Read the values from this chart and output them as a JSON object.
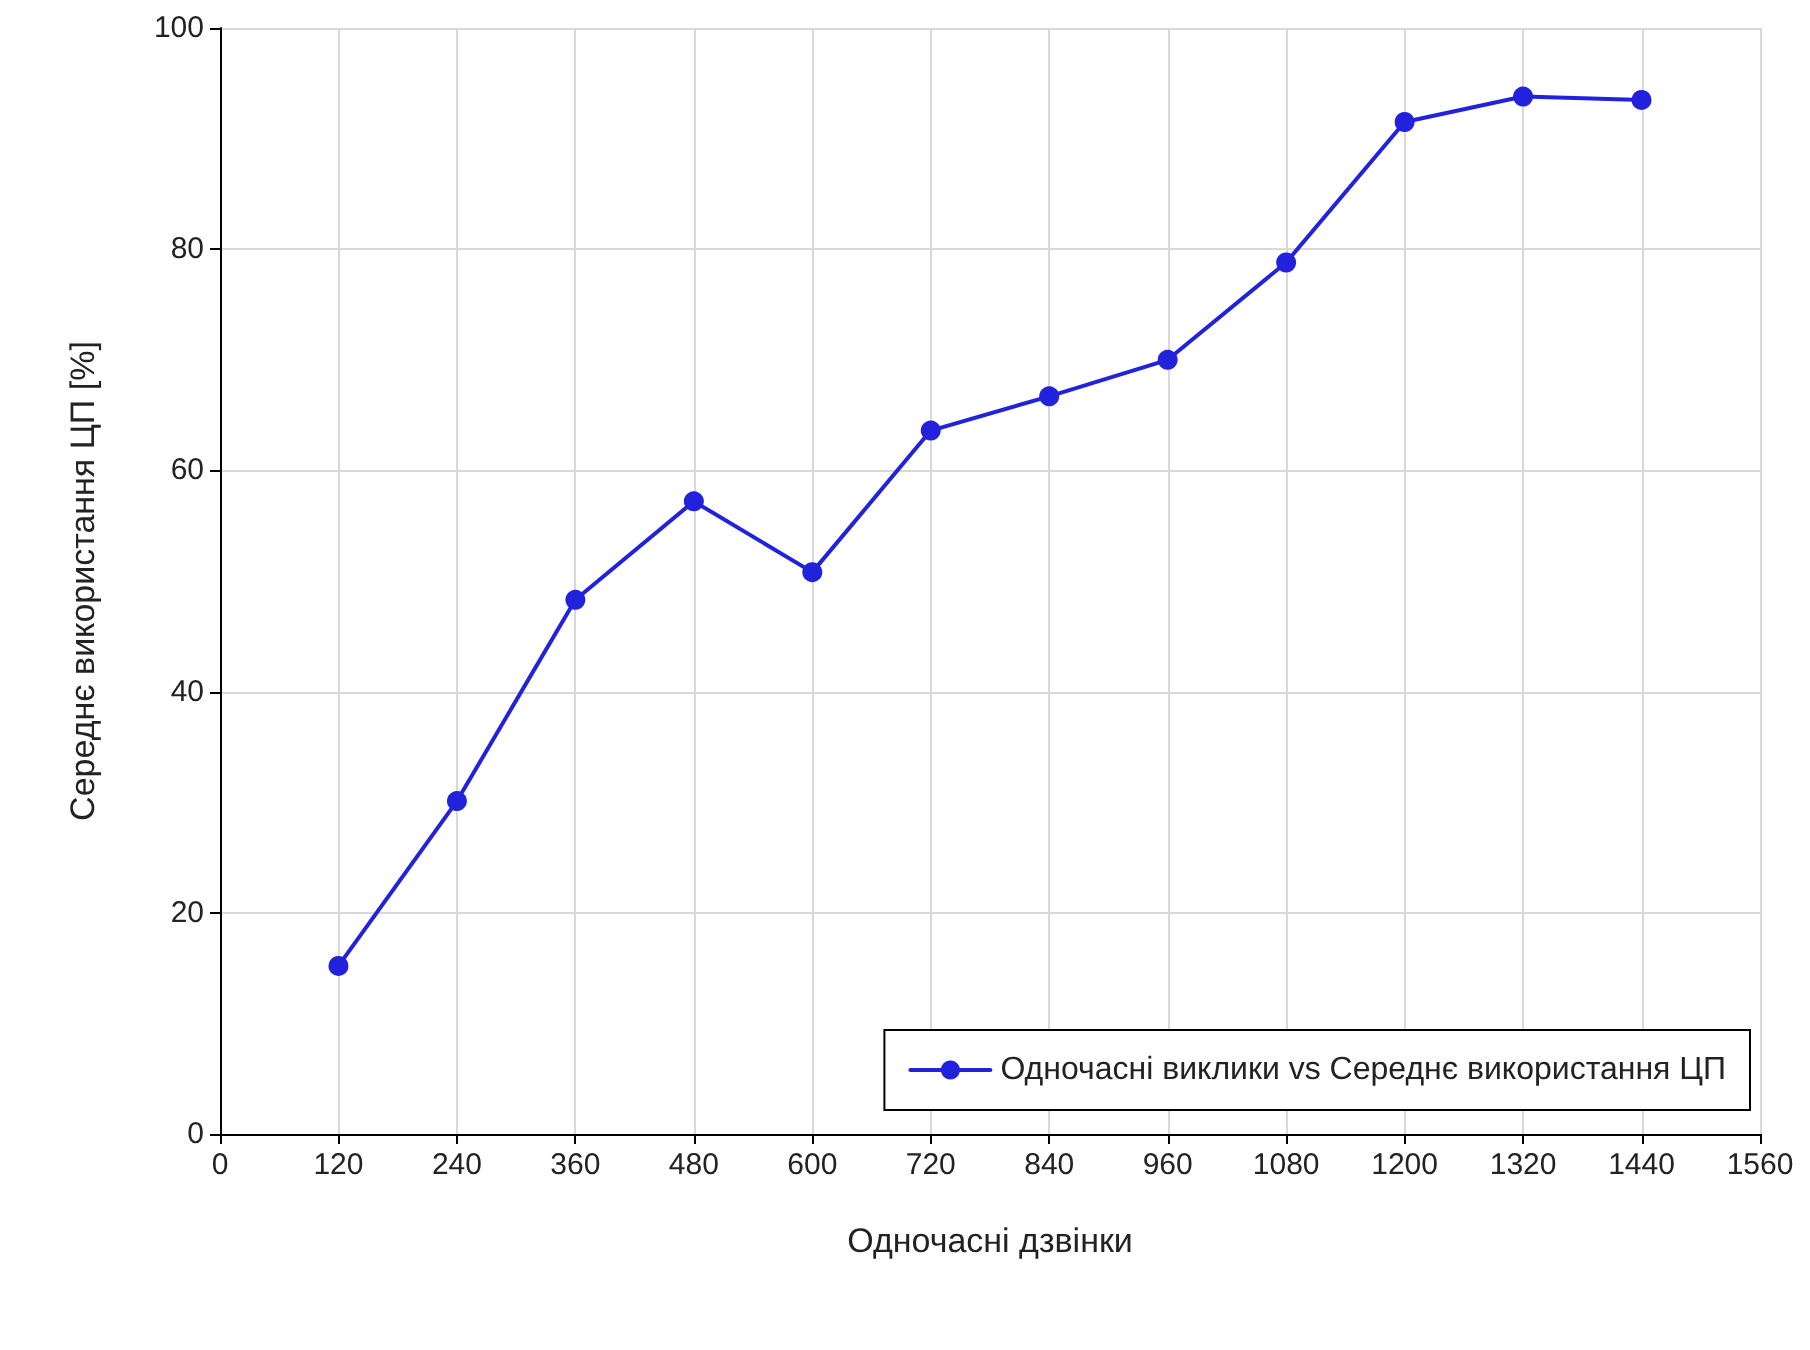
{
  "chart_data": {
    "type": "line",
    "xlabel": "Одночасні дзвінки",
    "ylabel": "Середнє використання ЦП [%]",
    "x": [
      120,
      240,
      360,
      480,
      600,
      720,
      840,
      960,
      1080,
      1200,
      1320,
      1440
    ],
    "series": [
      {
        "name": "Одночасні виклики vs Середнє використання ЦП",
        "color": "#2222dd",
        "values": [
          15.2,
          30.1,
          48.3,
          57.2,
          50.8,
          63.6,
          66.7,
          70.0,
          78.8,
          91.5,
          93.8,
          93.5
        ]
      }
    ],
    "xlim": [
      0,
      1560
    ],
    "xticks": [
      0,
      120,
      240,
      360,
      480,
      600,
      720,
      840,
      960,
      1080,
      1200,
      1320,
      1440,
      1560
    ],
    "ylim": [
      0,
      100
    ],
    "yticks": [
      0,
      20,
      40,
      60,
      80,
      100
    ],
    "grid": true,
    "legend": "bottom right",
    "marker": "circle",
    "line_style": "solid"
  }
}
